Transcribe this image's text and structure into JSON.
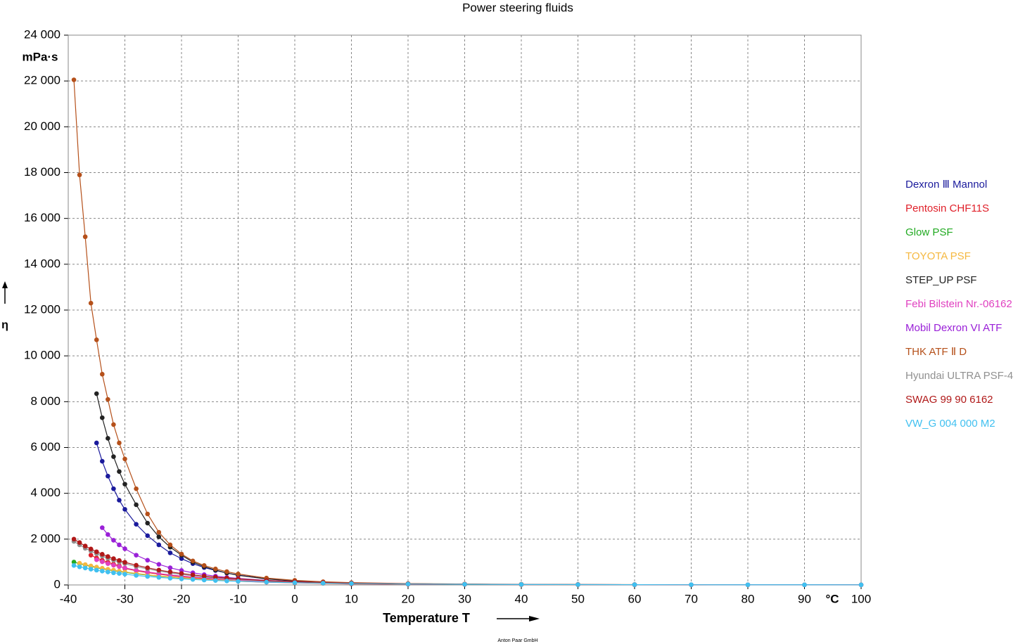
{
  "chart_data": {
    "type": "line",
    "title": "Power steering fluids",
    "x_label": "Temperature T",
    "x_unit": "°C",
    "y_label": "η",
    "y_unit": "mPa·s",
    "footer": "Anton Paar GmbH",
    "xlim": [
      -40,
      100
    ],
    "xticks": [
      -40,
      -30,
      -20,
      -10,
      0,
      10,
      20,
      30,
      40,
      50,
      60,
      70,
      80,
      90,
      100
    ],
    "ylim": [
      0,
      24000
    ],
    "yticks": [
      {
        "value": 0,
        "label": "0"
      },
      {
        "value": 2000,
        "label": "2 000"
      },
      {
        "value": 4000,
        "label": "4 000"
      },
      {
        "value": 6000,
        "label": "6 000"
      },
      {
        "value": 8000,
        "label": "8 000"
      },
      {
        "value": 10000,
        "label": "10 000"
      },
      {
        "value": 12000,
        "label": "12 000"
      },
      {
        "value": 14000,
        "label": "14 000"
      },
      {
        "value": 16000,
        "label": "16 000"
      },
      {
        "value": 18000,
        "label": "18 000"
      },
      {
        "value": 20000,
        "label": "20 000"
      },
      {
        "value": 22000,
        "label": "22 000"
      },
      {
        "value": 24000,
        "label": "24 000"
      }
    ],
    "grid": true,
    "legend": "right",
    "x": [
      -39,
      -38,
      -37,
      -36,
      -35,
      -34,
      -33,
      -32,
      -31,
      -30,
      -28,
      -26,
      -24,
      -22,
      -20,
      -18,
      -16,
      -14,
      -12,
      -10,
      -5,
      0,
      5,
      10,
      20,
      30,
      40,
      50,
      60,
      70,
      80,
      90,
      100
    ],
    "series": [
      {
        "name": "Dexron Ⅲ Mannol",
        "color": "#1a1a9c",
        "values": [
          null,
          null,
          null,
          null,
          6200,
          5400,
          4750,
          4200,
          3700,
          3300,
          2650,
          2150,
          1750,
          1400,
          1150,
          930,
          760,
          630,
          520,
          430,
          270,
          175,
          120,
          85,
          50,
          33,
          23,
          17,
          13,
          10,
          8,
          7,
          6
        ]
      },
      {
        "name": "Pentosin CHF11S",
        "color": "#e0202a",
        "values": [
          null,
          null,
          null,
          1300,
          1180,
          1080,
          990,
          910,
          840,
          720,
          620,
          540,
          470,
          410,
          360,
          320,
          280,
          250,
          220,
          160,
          120,
          90,
          70,
          42,
          28,
          20,
          15,
          11,
          9,
          7,
          6,
          5,
          5
        ]
      },
      {
        "name": "Glow PSF",
        "color": "#22aa22",
        "values": [
          1000,
          930,
          870,
          810,
          760,
          710,
          665,
          625,
          585,
          550,
          485,
          430,
          380,
          340,
          300,
          270,
          240,
          215,
          195,
          175,
          135,
          105,
          80,
          63,
          40,
          28,
          20,
          null,
          null,
          null,
          null,
          null,
          null
        ]
      },
      {
        "name": "TOYOTA PSF",
        "color": "#f5b840",
        "values": [
          null,
          950,
          890,
          830,
          780,
          730,
          685,
          645,
          605,
          570,
          505,
          445,
          395,
          350,
          310,
          280,
          250,
          225,
          200,
          180,
          140,
          108,
          82,
          65,
          41,
          29,
          21,
          15,
          null,
          null,
          null,
          null,
          null
        ]
      },
      {
        "name": "STEP_UP PSF",
        "color": "#222222",
        "values": [
          null,
          null,
          null,
          null,
          8350,
          7300,
          6400,
          5600,
          4950,
          4400,
          3500,
          2700,
          2100,
          1650,
          1300,
          1000,
          800,
          650,
          520,
          420,
          260,
          170,
          115,
          85,
          50,
          33,
          24,
          null,
          null,
          null,
          null,
          null,
          null
        ]
      },
      {
        "name": "Febi Bilstein Nr.-06162",
        "color": "#e040c0",
        "values": [
          null,
          null,
          null,
          null,
          1100,
          1010,
          930,
          860,
          800,
          745,
          650,
          570,
          500,
          440,
          390,
          345,
          305,
          270,
          240,
          215,
          155,
          115,
          88,
          68,
          41,
          28,
          null,
          null,
          null,
          null,
          null,
          null,
          null
        ]
      },
      {
        "name": "Mobil Dexron VI  ATF",
        "color": "#9a20d8",
        "values": [
          null,
          null,
          null,
          null,
          null,
          2500,
          2200,
          1950,
          1750,
          1580,
          1300,
          1080,
          900,
          750,
          630,
          530,
          450,
          385,
          330,
          285,
          200,
          145,
          105,
          80,
          48,
          32,
          null,
          null,
          null,
          null,
          null,
          null,
          null
        ]
      },
      {
        "name": "THK ATF Ⅱ D",
        "color": "#b5501a",
        "values": [
          22050,
          17900,
          15200,
          12300,
          10700,
          9200,
          8100,
          7000,
          6200,
          5500,
          4200,
          3100,
          2300,
          1750,
          1350,
          1050,
          850,
          700,
          580,
          480,
          300,
          200,
          140,
          100,
          60,
          40,
          28,
          20,
          15,
          null,
          null,
          null,
          null
        ]
      },
      {
        "name": "Hyundai ULTRA PSF-4",
        "color": "#909090",
        "values": [
          1900,
          1750,
          1600,
          1480,
          1360,
          1260,
          1160,
          1080,
          1000,
          930,
          800,
          700,
          610,
          530,
          460,
          400,
          350,
          310,
          270,
          240,
          170,
          125,
          95,
          72,
          44,
          30,
          20,
          15,
          11,
          null,
          null,
          null,
          null
        ]
      },
      {
        "name": "SWAG 99 90 6162",
        "color": "#b01818",
        "values": [
          2000,
          1850,
          1700,
          1570,
          1450,
          1340,
          1240,
          1150,
          1070,
          990,
          860,
          750,
          650,
          570,
          500,
          440,
          385,
          340,
          300,
          265,
          190,
          140,
          105,
          80,
          48,
          32,
          22,
          16,
          12,
          null,
          null,
          null,
          null
        ]
      },
      {
        "name": "VW_G 004 000 M2",
        "color": "#40c0f0",
        "values": [
          850,
          790,
          740,
          690,
          645,
          605,
          565,
          530,
          500,
          470,
          415,
          370,
          330,
          295,
          265,
          240,
          215,
          195,
          175,
          160,
          125,
          98,
          78,
          62,
          40,
          28,
          20,
          15,
          12,
          9,
          8,
          7,
          6
        ]
      }
    ]
  }
}
